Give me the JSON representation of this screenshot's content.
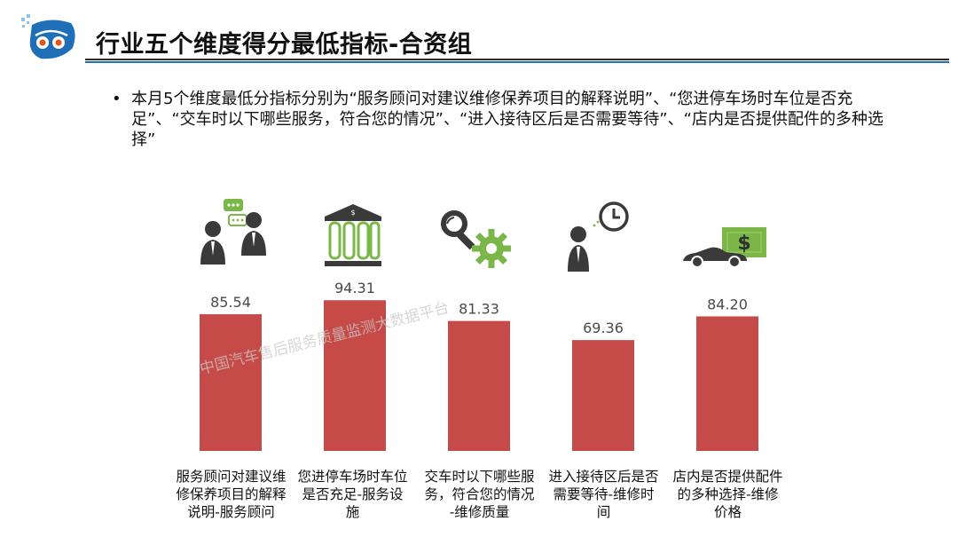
{
  "header": {
    "title": "行业五个维度得分最低指标-合资组"
  },
  "summary": {
    "bullet": "•",
    "text": "本月5个维度最低分指标分别为“服务顾问对建议维修保养项目的解释说明”、“您进停车场时车位是否充足”、“交车时以下哪些服务，符合您的情况”、“进入接待区后是否需要等待”、“店内是否提供配件的多种选择”"
  },
  "watermark": "中国汽车售后服务质量监测大数据平台",
  "icons": [
    "consultant-chat-icon",
    "bank-building-icon",
    "magnifier-gear-icon",
    "person-clock-icon",
    "car-dollar-icon"
  ],
  "colors": {
    "bar": "#c64b48",
    "label": "#4a4a4a",
    "accent": "#1f6fb8",
    "icon_green": "#7ab648",
    "icon_dark": "#3a3a3a"
  },
  "chart_data": {
    "type": "bar",
    "categories": [
      "服务顾问对建议维修保养项目的解释说明-服务顾问",
      "您进停车场时车位是否充足-服务设施",
      "交车时以下哪些服务，符合您的情况-维修质量",
      "进入接待区后是否需要等待-维修时间",
      "店内是否提供配件的多种选择-维修价格"
    ],
    "category_lines": [
      [
        "服务顾问对建议维",
        "修保养项目的解释",
        "说明-服务顾问"
      ],
      [
        "您进停车场时车位",
        "是否充足-服务设",
        "施"
      ],
      [
        "交车时以下哪些服",
        "务，符合您的情况",
        "-维修质量"
      ],
      [
        "进入接待区后是否",
        "需要等待-维修时",
        "间"
      ],
      [
        "店内是否提供配件",
        "的多种选择-维修",
        "价格"
      ]
    ],
    "values": [
      85.54,
      94.31,
      81.33,
      69.36,
      84.2
    ],
    "labels": [
      "85.54",
      "94.31",
      "81.33",
      "69.36",
      "84.20"
    ],
    "ylim": [
      0,
      100
    ],
    "grid": false,
    "legend": "none"
  }
}
